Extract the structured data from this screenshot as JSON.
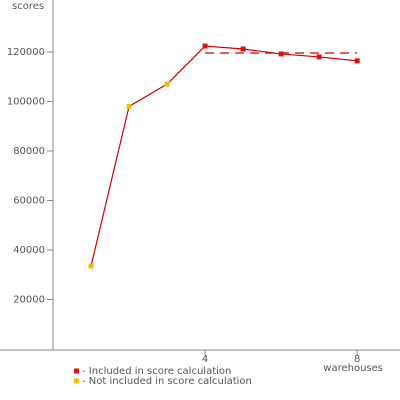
{
  "chart_data": {
    "type": "line",
    "x_label": "scores",
    "x_axis_label": "warehouses",
    "x": [
      1,
      2,
      3,
      4,
      5,
      6,
      7,
      8
    ],
    "line_color": "#cc0000",
    "series": [
      {
        "name": "- Included in score calculation",
        "color": "#dd1111",
        "values": [
          null,
          null,
          null,
          122400,
          121200,
          119200,
          118000,
          116400
        ]
      },
      {
        "name": "- Not included in score calculation",
        "color": "#f0c000",
        "values": [
          33500,
          98000,
          107000,
          null,
          null,
          null,
          null,
          null
        ]
      }
    ],
    "score_line": {
      "value": 119600,
      "x": [
        4,
        8
      ],
      "color": "#cc0000"
    },
    "xlim": [
      0,
      9.1
    ],
    "xticks": [
      4,
      8
    ],
    "ylim": [
      0,
      141000
    ],
    "yticks": [
      20000,
      40000,
      60000,
      80000,
      100000,
      120000
    ]
  }
}
